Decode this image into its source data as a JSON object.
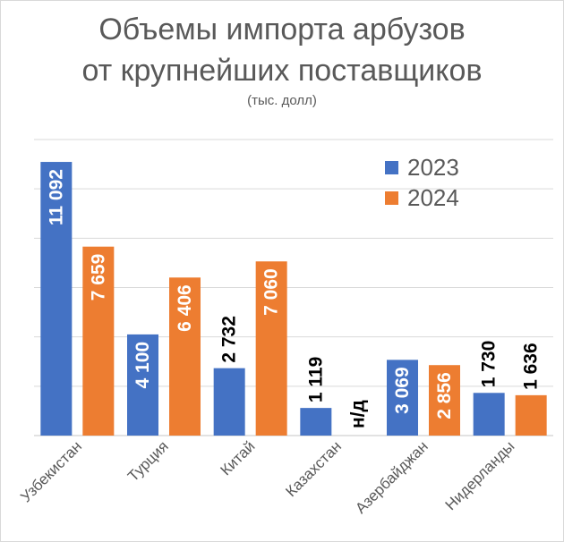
{
  "chart_data": {
    "type": "bar",
    "title": "Объемы импорта арбузов",
    "title_line2": "от крупнейших поставщиков",
    "subtitle": "(тыс. долл)",
    "categories": [
      "Узбекистан",
      "Турция",
      "Китай",
      "Казахстан",
      "Азербайджан",
      "Нидерланды"
    ],
    "series": [
      {
        "name": "2023",
        "color": "#4472c4",
        "values": [
          11092,
          4100,
          2732,
          1119,
          3069,
          1730
        ],
        "labels": [
          "11 092",
          "4 100",
          "2 732",
          "1 119",
          "3 069",
          "1 730"
        ]
      },
      {
        "name": "2024",
        "color": "#ed7d31",
        "values": [
          7659,
          6406,
          7060,
          null,
          2856,
          1636
        ],
        "labels": [
          "7 659",
          "6 406",
          "7 060",
          "н/д",
          "2 856",
          "1 636"
        ]
      }
    ],
    "ylim": [
      0,
      12000
    ],
    "grid": true,
    "legend_position": "top-right"
  }
}
